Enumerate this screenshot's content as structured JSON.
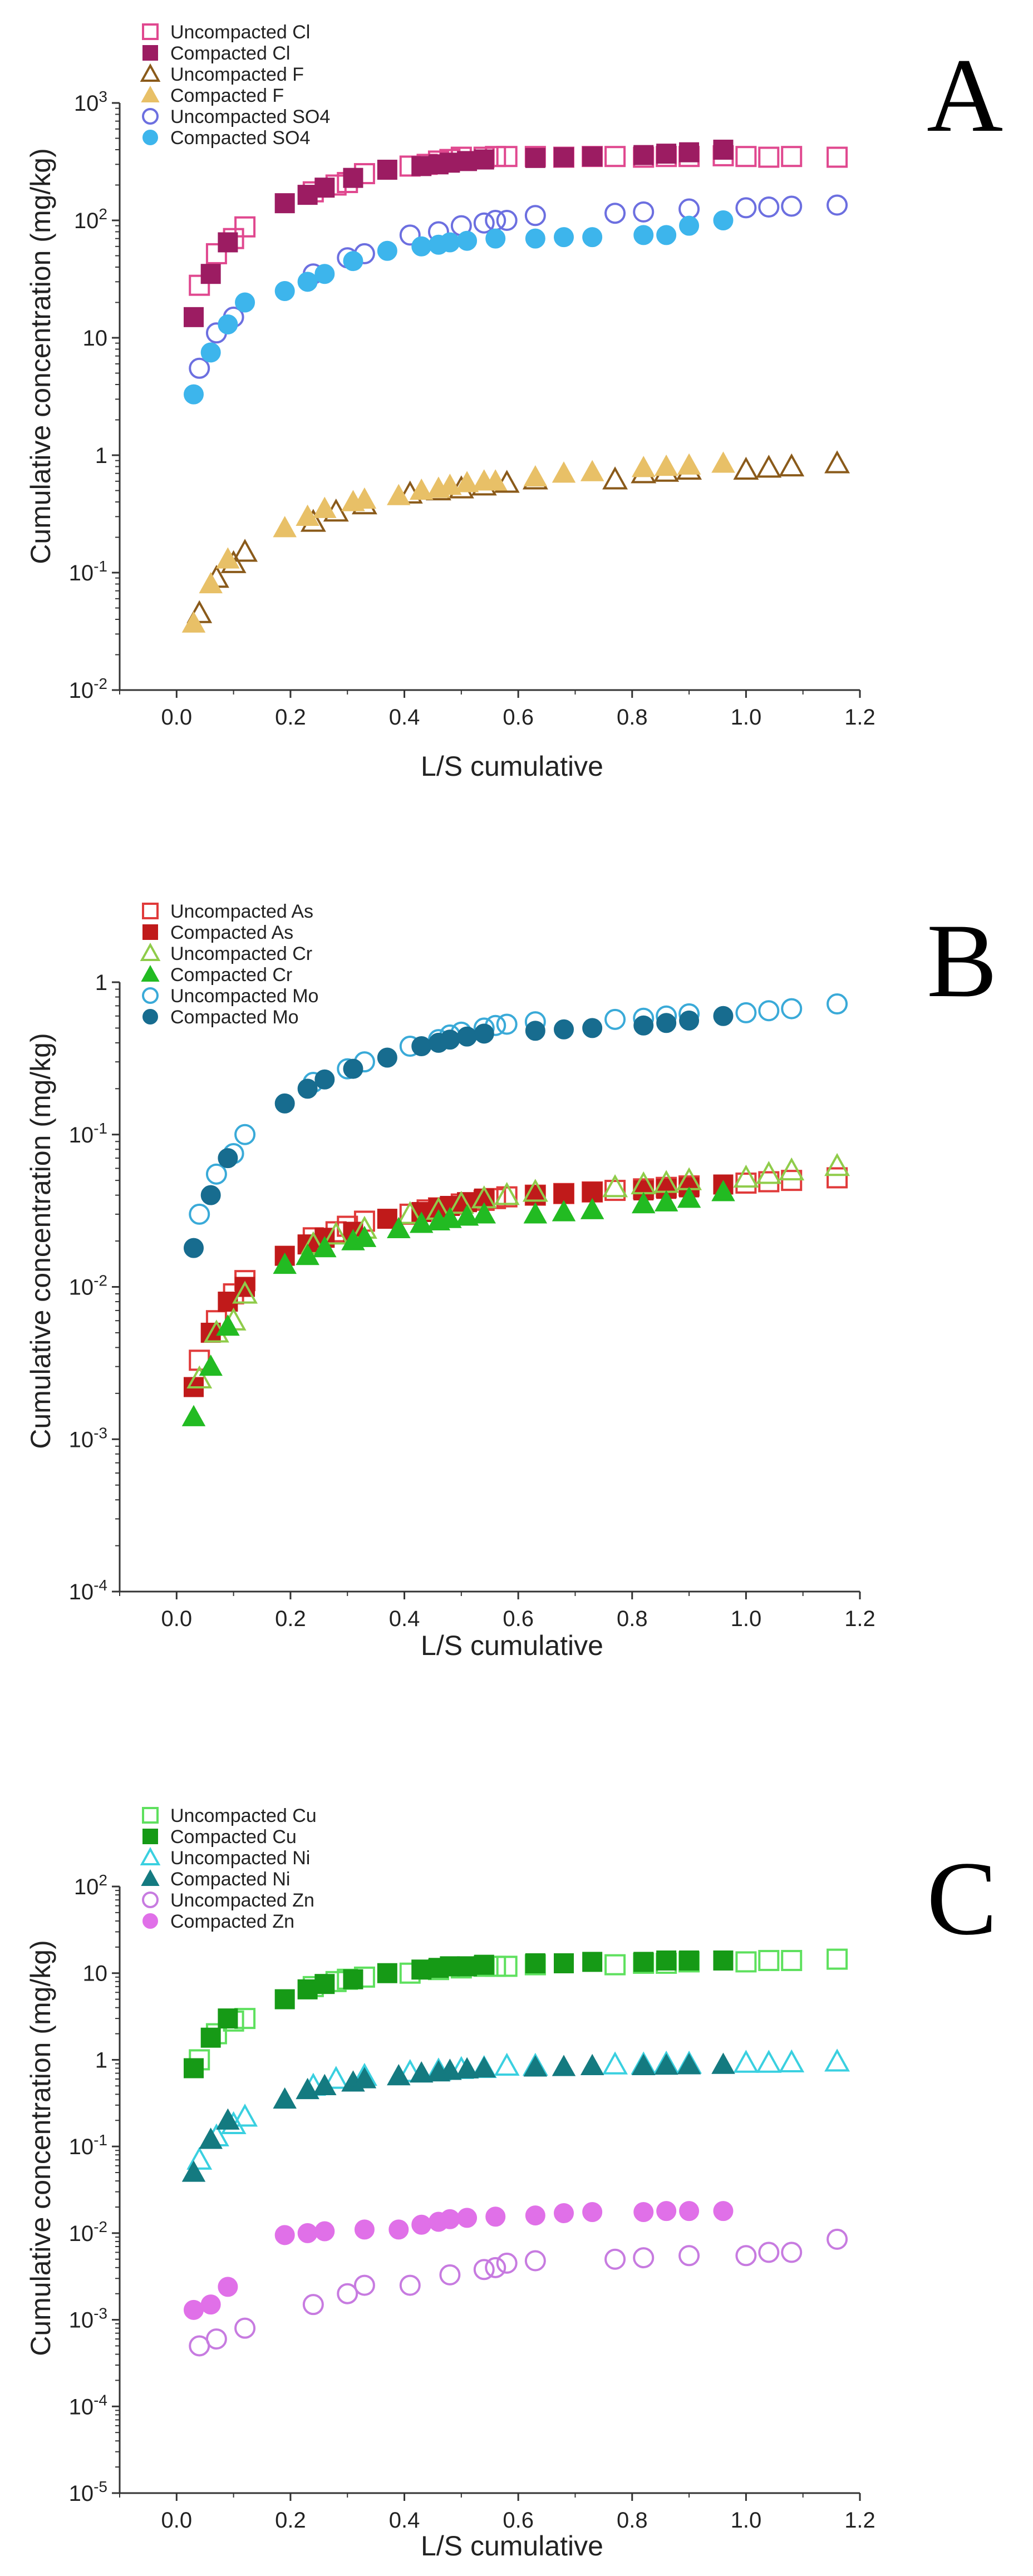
{
  "chart_data": [
    {
      "type": "scatter",
      "panel": "A",
      "xlabel": "L/S cumulative",
      "ylabel": "Cumulative concentration (mg/kg)",
      "yscale": "log",
      "xlim": [
        -0.1,
        1.2
      ],
      "ylim_exp": [
        -2,
        3
      ],
      "xticks": [
        0.0,
        0.2,
        0.4,
        0.6,
        0.8,
        1.0,
        1.2
      ],
      "xtick_labels": [
        "0.0",
        "0.2",
        "0.4",
        "0.6",
        "0.8",
        "1.0",
        "1.2"
      ],
      "ytick_labels": [
        "10-2",
        "10-1",
        "1",
        "10",
        "102",
        "103"
      ],
      "legend_position": "top-left",
      "series": [
        {
          "name": "Uncompacted Cl",
          "marker": "square",
          "filled": false,
          "color": "#e0488f",
          "x": [
            0.04,
            0.07,
            0.1,
            0.12,
            0.24,
            0.28,
            0.3,
            0.33,
            0.41,
            0.44,
            0.46,
            0.48,
            0.5,
            0.54,
            0.56,
            0.58,
            0.63,
            0.68,
            0.73,
            0.77,
            0.82,
            0.86,
            0.9,
            0.96,
            1.0,
            1.04,
            1.08,
            1.16
          ],
          "y": [
            28,
            52,
            70,
            88,
            175,
            200,
            210,
            250,
            290,
            300,
            320,
            330,
            345,
            345,
            350,
            350,
            350,
            345,
            350,
            350,
            345,
            350,
            350,
            355,
            350,
            345,
            350,
            345
          ]
        },
        {
          "name": "Compacted Cl",
          "marker": "square",
          "filled": true,
          "color": "#9c1c62",
          "x": [
            0.03,
            0.06,
            0.09,
            0.19,
            0.23,
            0.26,
            0.31,
            0.37,
            0.43,
            0.46,
            0.48,
            0.51,
            0.54,
            0.63,
            0.68,
            0.73,
            0.82,
            0.86,
            0.9,
            0.96
          ],
          "y": [
            15,
            35,
            65,
            140,
            165,
            190,
            230,
            270,
            290,
            300,
            310,
            320,
            330,
            340,
            345,
            350,
            360,
            370,
            380,
            400
          ]
        },
        {
          "name": "Uncompacted F",
          "marker": "triangle",
          "filled": false,
          "color": "#8a5a1a",
          "x": [
            0.04,
            0.07,
            0.1,
            0.12,
            0.24,
            0.28,
            0.33,
            0.41,
            0.46,
            0.5,
            0.54,
            0.58,
            0.63,
            0.77,
            0.82,
            0.86,
            0.9,
            1.0,
            1.04,
            1.08,
            1.16
          ],
          "y": [
            0.045,
            0.09,
            0.12,
            0.15,
            0.27,
            0.33,
            0.38,
            0.47,
            0.5,
            0.52,
            0.55,
            0.58,
            0.62,
            0.62,
            0.7,
            0.72,
            0.75,
            0.75,
            0.78,
            0.8,
            0.85
          ]
        },
        {
          "name": "Compacted F",
          "marker": "triangle",
          "filled": true,
          "color": "#e8c067",
          "x": [
            0.03,
            0.06,
            0.09,
            0.19,
            0.23,
            0.26,
            0.31,
            0.33,
            0.39,
            0.43,
            0.46,
            0.48,
            0.51,
            0.54,
            0.56,
            0.63,
            0.68,
            0.73,
            0.82,
            0.86,
            0.9,
            0.96
          ],
          "y": [
            0.037,
            0.08,
            0.13,
            0.24,
            0.3,
            0.35,
            0.4,
            0.42,
            0.45,
            0.5,
            0.52,
            0.55,
            0.58,
            0.6,
            0.6,
            0.65,
            0.7,
            0.72,
            0.78,
            0.8,
            0.82,
            0.85
          ]
        },
        {
          "name": "Uncompacted SO4",
          "marker": "circle",
          "filled": false,
          "color": "#6c6fe0",
          "x": [
            0.04,
            0.07,
            0.1,
            0.24,
            0.3,
            0.33,
            0.41,
            0.46,
            0.5,
            0.54,
            0.56,
            0.58,
            0.63,
            0.77,
            0.82,
            0.9,
            1.0,
            1.04,
            1.08,
            1.16
          ],
          "y": [
            5.5,
            11,
            15,
            35,
            48,
            52,
            75,
            80,
            90,
            95,
            100,
            100,
            110,
            115,
            118,
            125,
            128,
            130,
            132,
            135
          ]
        },
        {
          "name": "Compacted SO4",
          "marker": "circle",
          "filled": true,
          "color": "#3db5ec",
          "x": [
            0.03,
            0.06,
            0.09,
            0.12,
            0.19,
            0.23,
            0.26,
            0.31,
            0.37,
            0.43,
            0.46,
            0.48,
            0.51,
            0.56,
            0.63,
            0.68,
            0.73,
            0.82,
            0.86,
            0.9,
            0.96
          ],
          "y": [
            3.3,
            7.5,
            13,
            20,
            25,
            30,
            35,
            45,
            55,
            60,
            62,
            65,
            67,
            70,
            70,
            72,
            72,
            75,
            75,
            90,
            100
          ]
        }
      ]
    },
    {
      "type": "scatter",
      "panel": "B",
      "xlabel": "L/S cumulative",
      "ylabel": "Cumulative concentration (mg/kg)",
      "yscale": "log",
      "xlim": [
        -0.1,
        1.2
      ],
      "ylim_exp": [
        -4,
        0
      ],
      "xticks": [
        0.0,
        0.2,
        0.4,
        0.6,
        0.8,
        1.0,
        1.2
      ],
      "xtick_labels": [
        "0.0",
        "0.2",
        "0.4",
        "0.6",
        "0.8",
        "1.0",
        "1.2"
      ],
      "ytick_labels": [
        "10-4",
        "10-3",
        "10-2",
        "10-1",
        "1"
      ],
      "legend_position": "top-left",
      "series": [
        {
          "name": "Uncompacted As",
          "marker": "square",
          "filled": false,
          "color": "#e03a3a",
          "x": [
            0.04,
            0.07,
            0.1,
            0.12,
            0.24,
            0.28,
            0.3,
            0.33,
            0.41,
            0.44,
            0.46,
            0.5,
            0.54,
            0.56,
            0.58,
            0.63,
            0.68,
            0.73,
            0.77,
            0.82,
            0.86,
            0.9,
            1.0,
            1.04,
            1.08,
            1.16
          ],
          "y": [
            0.0033,
            0.006,
            0.009,
            0.011,
            0.021,
            0.023,
            0.025,
            0.027,
            0.03,
            0.032,
            0.033,
            0.035,
            0.037,
            0.038,
            0.039,
            0.04,
            0.041,
            0.042,
            0.043,
            0.044,
            0.045,
            0.046,
            0.048,
            0.049,
            0.05,
            0.052
          ]
        },
        {
          "name": "Compacted As",
          "marker": "square",
          "filled": true,
          "color": "#c01a1a",
          "x": [
            0.03,
            0.06,
            0.09,
            0.12,
            0.19,
            0.23,
            0.26,
            0.31,
            0.37,
            0.43,
            0.46,
            0.48,
            0.51,
            0.54,
            0.63,
            0.68,
            0.73,
            0.82,
            0.86,
            0.9,
            0.96
          ],
          "y": [
            0.0022,
            0.005,
            0.008,
            0.01,
            0.016,
            0.019,
            0.021,
            0.023,
            0.028,
            0.031,
            0.033,
            0.034,
            0.036,
            0.038,
            0.04,
            0.041,
            0.042,
            0.043,
            0.044,
            0.045,
            0.047
          ]
        },
        {
          "name": "Uncompacted Cr",
          "marker": "triangle",
          "filled": false,
          "color": "#8fcc4a",
          "x": [
            0.04,
            0.07,
            0.1,
            0.12,
            0.24,
            0.28,
            0.33,
            0.41,
            0.46,
            0.5,
            0.54,
            0.58,
            0.63,
            0.77,
            0.82,
            0.86,
            0.9,
            1.0,
            1.04,
            1.08,
            1.16
          ],
          "y": [
            0.0025,
            0.005,
            0.006,
            0.009,
            0.019,
            0.022,
            0.024,
            0.03,
            0.032,
            0.035,
            0.038,
            0.04,
            0.042,
            0.045,
            0.047,
            0.048,
            0.05,
            0.052,
            0.055,
            0.058,
            0.062
          ]
        },
        {
          "name": "Compacted Cr",
          "marker": "triangle",
          "filled": true,
          "color": "#22bb22",
          "x": [
            0.03,
            0.06,
            0.09,
            0.19,
            0.23,
            0.26,
            0.31,
            0.33,
            0.39,
            0.43,
            0.46,
            0.48,
            0.51,
            0.54,
            0.63,
            0.68,
            0.73,
            0.82,
            0.86,
            0.9,
            0.96
          ],
          "y": [
            0.0014,
            0.003,
            0.0055,
            0.014,
            0.016,
            0.018,
            0.02,
            0.021,
            0.024,
            0.026,
            0.027,
            0.028,
            0.029,
            0.03,
            0.03,
            0.031,
            0.032,
            0.035,
            0.036,
            0.038,
            0.042
          ]
        },
        {
          "name": "Uncompacted Mo",
          "marker": "circle",
          "filled": false,
          "color": "#3aaad8",
          "x": [
            0.04,
            0.07,
            0.1,
            0.12,
            0.24,
            0.3,
            0.33,
            0.41,
            0.46,
            0.48,
            0.5,
            0.54,
            0.56,
            0.58,
            0.63,
            0.77,
            0.82,
            0.86,
            0.9,
            1.0,
            1.04,
            1.08,
            1.16
          ],
          "y": [
            0.03,
            0.055,
            0.075,
            0.1,
            0.22,
            0.27,
            0.3,
            0.38,
            0.42,
            0.45,
            0.47,
            0.5,
            0.52,
            0.53,
            0.55,
            0.57,
            0.58,
            0.6,
            0.62,
            0.63,
            0.65,
            0.67,
            0.72
          ]
        },
        {
          "name": "Compacted Mo",
          "marker": "circle",
          "filled": true,
          "color": "#176c8f",
          "x": [
            0.03,
            0.06,
            0.09,
            0.19,
            0.23,
            0.26,
            0.31,
            0.37,
            0.43,
            0.46,
            0.48,
            0.51,
            0.54,
            0.63,
            0.68,
            0.73,
            0.82,
            0.86,
            0.9,
            0.96
          ],
          "y": [
            0.018,
            0.04,
            0.07,
            0.16,
            0.2,
            0.23,
            0.27,
            0.32,
            0.38,
            0.4,
            0.42,
            0.44,
            0.46,
            0.48,
            0.49,
            0.5,
            0.52,
            0.54,
            0.56,
            0.6
          ]
        }
      ]
    },
    {
      "type": "scatter",
      "panel": "C",
      "xlabel": "L/S cumulative",
      "ylabel": "Cumulative concentration (mg/kg)",
      "yscale": "log",
      "xlim": [
        -0.1,
        1.2
      ],
      "ylim_exp": [
        -5,
        2
      ],
      "xticks": [
        0.0,
        0.2,
        0.4,
        0.6,
        0.8,
        1.0,
        1.2
      ],
      "xtick_labels": [
        "0.0",
        "0.2",
        "0.4",
        "0.6",
        "0.8",
        "1.0",
        "1.2"
      ],
      "ytick_labels": [
        "10-5",
        "10-4",
        "10-3",
        "10-2",
        "10-1",
        "1",
        "10",
        "102"
      ],
      "legend_position": "top-left",
      "series": [
        {
          "name": "Uncompacted Cu",
          "marker": "square",
          "filled": false,
          "color": "#5ee05e",
          "x": [
            0.04,
            0.07,
            0.1,
            0.12,
            0.24,
            0.28,
            0.3,
            0.33,
            0.41,
            0.46,
            0.5,
            0.54,
            0.56,
            0.58,
            0.63,
            0.77,
            0.82,
            0.86,
            0.9,
            1.0,
            1.04,
            1.08,
            1.16
          ],
          "y": [
            1,
            2,
            2.8,
            3,
            7,
            8,
            8.5,
            9,
            10,
            11,
            11.5,
            12,
            12,
            12,
            12.5,
            12.5,
            13,
            13,
            13.5,
            13.5,
            14,
            14,
            14.5
          ]
        },
        {
          "name": "Compacted Cu",
          "marker": "square",
          "filled": true,
          "color": "#169a16",
          "x": [
            0.03,
            0.06,
            0.09,
            0.19,
            0.23,
            0.26,
            0.31,
            0.37,
            0.43,
            0.46,
            0.48,
            0.51,
            0.54,
            0.63,
            0.68,
            0.73,
            0.82,
            0.86,
            0.9,
            0.96
          ],
          "y": [
            0.8,
            1.8,
            3,
            5,
            6.5,
            7.5,
            8.5,
            10,
            11,
            11.5,
            12,
            12,
            12.5,
            13,
            13,
            13.5,
            13.5,
            14,
            14,
            14
          ]
        },
        {
          "name": "Uncompacted Ni",
          "marker": "triangle",
          "filled": false,
          "color": "#3ad0e0",
          "x": [
            0.04,
            0.07,
            0.1,
            0.12,
            0.24,
            0.28,
            0.33,
            0.41,
            0.46,
            0.5,
            0.54,
            0.58,
            0.63,
            0.77,
            0.82,
            0.86,
            0.9,
            1.0,
            1.04,
            1.08,
            1.16
          ],
          "y": [
            0.07,
            0.13,
            0.18,
            0.22,
            0.5,
            0.6,
            0.65,
            0.72,
            0.75,
            0.78,
            0.8,
            0.85,
            0.85,
            0.88,
            0.88,
            0.9,
            0.9,
            0.92,
            0.92,
            0.93,
            0.95
          ]
        },
        {
          "name": "Compacted Ni",
          "marker": "triangle",
          "filled": true,
          "color": "#147a80",
          "x": [
            0.03,
            0.06,
            0.09,
            0.19,
            0.23,
            0.26,
            0.31,
            0.33,
            0.39,
            0.43,
            0.46,
            0.48,
            0.51,
            0.54,
            0.63,
            0.68,
            0.73,
            0.82,
            0.86,
            0.9,
            0.96
          ],
          "y": [
            0.05,
            0.12,
            0.2,
            0.35,
            0.45,
            0.5,
            0.55,
            0.6,
            0.65,
            0.7,
            0.72,
            0.75,
            0.78,
            0.8,
            0.82,
            0.83,
            0.85,
            0.85,
            0.86,
            0.87,
            0.88
          ]
        },
        {
          "name": "Uncompacted Zn",
          "marker": "circle",
          "filled": false,
          "color": "#c77be0",
          "x": [
            0.04,
            0.07,
            0.12,
            0.24,
            0.3,
            0.33,
            0.41,
            0.48,
            0.54,
            0.56,
            0.58,
            0.63,
            0.77,
            0.82,
            0.9,
            1.0,
            1.04,
            1.08,
            1.16
          ],
          "y": [
            0.0005,
            0.0006,
            0.0008,
            0.0015,
            0.002,
            0.0025,
            0.0025,
            0.0033,
            0.0038,
            0.004,
            0.0045,
            0.0048,
            0.005,
            0.0052,
            0.0055,
            0.0055,
            0.006,
            0.006,
            0.0085
          ]
        },
        {
          "name": "Compacted Zn",
          "marker": "circle",
          "filled": true,
          "color": "#e070e8",
          "x": [
            0.03,
            0.06,
            0.09,
            0.19,
            0.23,
            0.26,
            0.33,
            0.39,
            0.43,
            0.46,
            0.48,
            0.51,
            0.56,
            0.63,
            0.68,
            0.73,
            0.82,
            0.86,
            0.9,
            0.96
          ],
          "y": [
            0.0013,
            0.0015,
            0.0024,
            0.0095,
            0.01,
            0.0105,
            0.011,
            0.011,
            0.0125,
            0.0135,
            0.0145,
            0.015,
            0.0155,
            0.016,
            0.017,
            0.0175,
            0.0175,
            0.018,
            0.018,
            0.018
          ]
        }
      ]
    }
  ]
}
